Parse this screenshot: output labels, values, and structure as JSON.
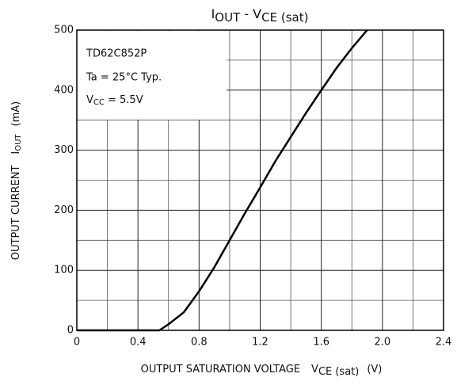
{
  "chart_data": {
    "type": "line",
    "title": [
      "I",
      "OUT",
      " - V",
      "CE (sat)"
    ],
    "x_label": [
      "OUTPUT SATURATION VOLTAGE",
      "V",
      "CE (sat)",
      "(V)"
    ],
    "y_label": [
      "OUTPUT CURRENT",
      "I",
      "OUT",
      "(mA)"
    ],
    "annotations": [
      "TD62C852P",
      "Ta = 25°C Typ.",
      "V",
      "CC",
      " = 5.5V"
    ],
    "x": [
      0,
      0.54,
      0.6,
      0.7,
      0.8,
      0.9,
      1.0,
      1.1,
      1.2,
      1.3,
      1.4,
      1.5,
      1.6,
      1.7,
      1.8,
      1.9
    ],
    "series": [
      {
        "color": "#000000",
        "values": [
          0,
          0,
          10,
          30,
          65,
          105,
          150,
          195,
          238,
          282,
          322,
          362,
          400,
          437,
          470,
          500
        ]
      }
    ],
    "xlim": [
      0,
      2.4
    ],
    "xticks": [
      0,
      0.4,
      0.8,
      1.2,
      1.6,
      {
        "value": 2,
        "label": "2.0"
      },
      2.4
    ],
    "ylim": [
      0,
      500
    ],
    "yticks": [
      0,
      100,
      200,
      300,
      400,
      500
    ],
    "grid": true
  }
}
